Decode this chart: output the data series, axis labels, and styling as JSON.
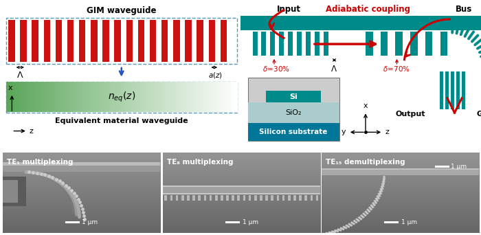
{
  "gim_label": "GIM waveguide",
  "equiv_label": "Equivalent material waveguide",
  "input_label": "Input",
  "bus_label": "Bus",
  "adiabatic_label": "Adiabatic coupling",
  "output_label": "Output",
  "gim_right_label": "GIM",
  "si_label": "Si",
  "sio2_label": "SiO₂",
  "substrate_label": "Silicon substrate",
  "te1_label": "TE₁ multiplexing",
  "te8_label": "TE₈ multiplexing",
  "te15_label": "TE₁₅ demultiplexing",
  "scale_label": "1 μm",
  "red_color": "#CC0000",
  "teal_color": "#008B8B",
  "bg_color": "#ffffff",
  "sem_bg": "#707070",
  "sem_dark": "#404040",
  "sem_light": "#909090",
  "sem_bright": "#b0b0b0"
}
